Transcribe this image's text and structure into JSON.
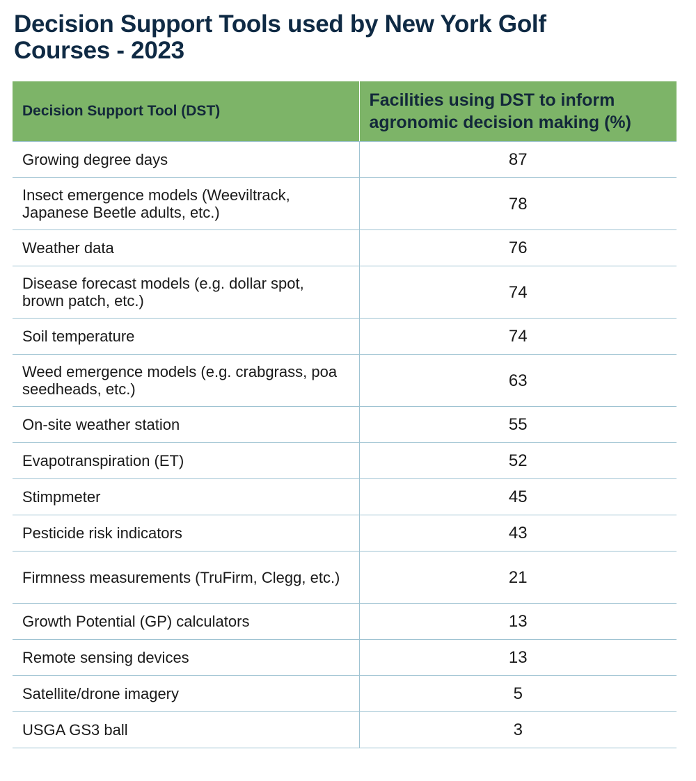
{
  "title": "Decision Support Tools used by New York Golf Courses - 2023",
  "header": {
    "tool_label": "Decision Support Tool (DST)",
    "percent_label": "Facilities using DST to inform agronomic decision making (%)"
  },
  "rows": [
    {
      "tool": "Growing degree days",
      "percent": "87"
    },
    {
      "tool": "Insect emergence models (Weeviltrack, Japanese Beetle adults, etc.)",
      "percent": "78"
    },
    {
      "tool": "Weather data",
      "percent": "76"
    },
    {
      "tool": "Disease forecast models (e.g. dollar spot, brown patch, etc.)",
      "percent": "74"
    },
    {
      "tool": "Soil temperature",
      "percent": "74"
    },
    {
      "tool": "Weed emergence models (e.g. crabgrass, poa seedheads, etc.)",
      "percent": "63"
    },
    {
      "tool": "On-site weather station",
      "percent": "55"
    },
    {
      "tool": "Evapotranspiration (ET)",
      "percent": "52"
    },
    {
      "tool": "Stimpmeter",
      "percent": "45"
    },
    {
      "tool": "Pesticide risk indicators",
      "percent": "43"
    },
    {
      "tool": "Firmness measurements (TruFirm, Clegg, etc.)",
      "percent": "21"
    },
    {
      "tool": "Growth Potential (GP) calculators",
      "percent": "13"
    },
    {
      "tool": "Remote sensing devices",
      "percent": "13"
    },
    {
      "tool": "Satellite/drone imagery",
      "percent": "5"
    },
    {
      "tool": "USGA GS3 ball",
      "percent": "3"
    }
  ],
  "colors": {
    "header_bg": "#7db468",
    "title": "#0f2a44",
    "rule": "#9fc3d2"
  }
}
